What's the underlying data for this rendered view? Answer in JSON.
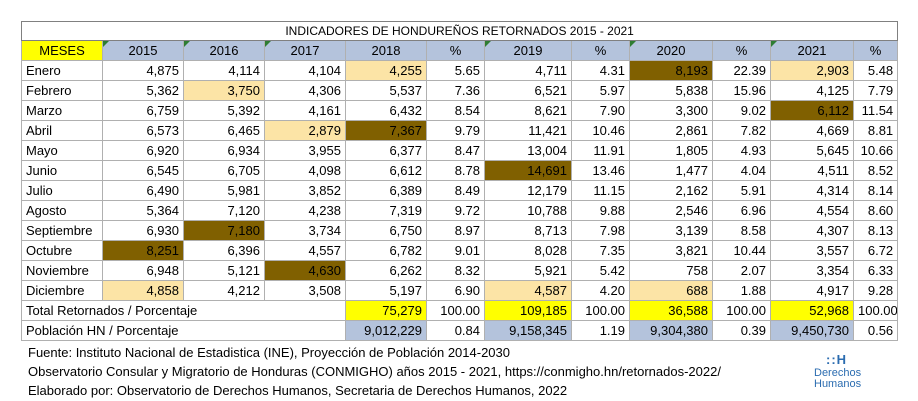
{
  "table": {
    "title": "INDICADORES DE HONDUREÑOS RETORNADOS 2015 - 2021",
    "headers": [
      "MESES",
      "2015",
      "2016",
      "2017",
      "2018",
      "%",
      "2019",
      "%",
      "2020",
      "%",
      "2021",
      "%"
    ],
    "rows": [
      {
        "cells": [
          "Enero",
          "4,875",
          "4,114",
          "4,104",
          "4,255",
          "5.65",
          "4,711",
          "4.31",
          "8,193",
          "22.39",
          "2,903",
          "5.48"
        ],
        "hl": {
          "4": "light",
          "8": "dark",
          "10": "light"
        }
      },
      {
        "cells": [
          "Febrero",
          "5,362",
          "3,750",
          "4,306",
          "5,537",
          "7.36",
          "6,521",
          "5.97",
          "5,838",
          "15.96",
          "4,125",
          "7.79"
        ],
        "hl": {
          "2": "light"
        }
      },
      {
        "cells": [
          "Marzo",
          "6,759",
          "5,392",
          "4,161",
          "6,432",
          "8.54",
          "8,621",
          "7.90",
          "3,300",
          "9.02",
          "6,112",
          "11.54"
        ],
        "hl": {
          "10": "dark"
        }
      },
      {
        "cells": [
          "Abril",
          "6,573",
          "6,465",
          "2,879",
          "7,367",
          "9.79",
          "11,421",
          "10.46",
          "2,861",
          "7.82",
          "4,669",
          "8.81"
        ],
        "hl": {
          "3": "light",
          "4": "dark"
        }
      },
      {
        "cells": [
          "Mayo",
          "6,920",
          "6,934",
          "3,955",
          "6,377",
          "8.47",
          "13,004",
          "11.91",
          "1,805",
          "4.93",
          "5,645",
          "10.66"
        ],
        "hl": {}
      },
      {
        "cells": [
          "Junio",
          "6,545",
          "6,705",
          "4,098",
          "6,612",
          "8.78",
          "14,691",
          "13.46",
          "1,477",
          "4.04",
          "4,511",
          "8.52"
        ],
        "hl": {
          "6": "dark"
        }
      },
      {
        "cells": [
          "Julio",
          "6,490",
          "5,981",
          "3,852",
          "6,389",
          "8.49",
          "12,179",
          "11.15",
          "2,162",
          "5.91",
          "4,314",
          "8.14"
        ],
        "hl": {}
      },
      {
        "cells": [
          "Agosto",
          "5,364",
          "7,120",
          "4,238",
          "7,319",
          "9.72",
          "10,788",
          "9.88",
          "2,546",
          "6.96",
          "4,554",
          "8.60"
        ],
        "hl": {}
      },
      {
        "cells": [
          "Septiembre",
          "6,930",
          "7,180",
          "3,734",
          "6,750",
          "8.97",
          "8,713",
          "7.98",
          "3,139",
          "8.58",
          "4,307",
          "8.13"
        ],
        "hl": {
          "2": "dark"
        }
      },
      {
        "cells": [
          "Octubre",
          "8,251",
          "6,396",
          "4,557",
          "6,782",
          "9.01",
          "8,028",
          "7.35",
          "3,821",
          "10.44",
          "3,557",
          "6.72"
        ],
        "hl": {
          "1": "dark"
        }
      },
      {
        "cells": [
          "Noviembre",
          "6,948",
          "5,121",
          "4,630",
          "6,262",
          "8.32",
          "5,921",
          "5.42",
          "758",
          "2.07",
          "3,354",
          "6.33"
        ],
        "hl": {
          "3": "dark"
        }
      },
      {
        "cells": [
          "Diciembre",
          "4,858",
          "4,212",
          "3,508",
          "5,197",
          "6.90",
          "4,587",
          "4.20",
          "688",
          "1.88",
          "4,917",
          "9.28"
        ],
        "hl": {
          "1": "light",
          "6": "light",
          "8": "light"
        }
      }
    ],
    "total_row": {
      "label": "Total Retornados / Porcentaje",
      "cells": [
        "75,279",
        "100.00",
        "109,185",
        "100.00",
        "36,588",
        "100.00",
        "52,968",
        "100.00"
      ]
    },
    "pop_row": {
      "label": "Población HN / Porcentaje",
      "cells": [
        "9,012,229",
        "0.84",
        "9,158,345",
        "1.19",
        "9,304,380",
        "0.39",
        "9,450,730",
        "0.56"
      ]
    }
  },
  "footnotes": [
    "Fuente: Instituto Nacional de Estadistica (INE), Proyección de Población 2014-2030",
    "Observatorio Consular y Migratorio de Honduras (CONMIGHO) años 2015 - 2021, https://conmigho.hn/retornados-2022/",
    "Elaborado por: Observatorio de Derechos Humanos, Secretaria de Derechos Humanos, 2022"
  ],
  "logo": {
    "mark": "::H",
    "line1": "Derechos",
    "line2": "Humanos"
  },
  "colors": {
    "header": "#b4c3dc",
    "meses": "#ffff00",
    "light_highlight": "#fce4a6",
    "dark_highlight": "#806000",
    "total_highlight": "#ffff00"
  }
}
